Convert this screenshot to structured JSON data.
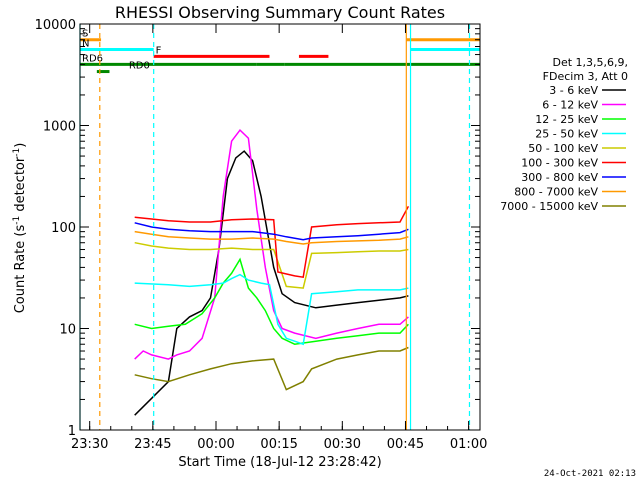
{
  "chart_data": {
    "type": "line",
    "title": "RHESSI Observing Summary Count Rates",
    "xlabel": "Start Time (18-Jul-12 23:28:42)",
    "ylabel": "Count Rate (s⁻¹ detector⁻¹)",
    "ylabel_main": "Count Rate (s",
    "ylabel_mid": " detector",
    "ylabel_end": ")",
    "ylabel_sup": "-1",
    "yscale": "log",
    "ylim": [
      1,
      10000
    ],
    "xlim_minutes": [
      -1,
      94
    ],
    "ytick_labels": [
      "1",
      "10",
      "100",
      "1000",
      "10000"
    ],
    "xtick_labels": [
      "23:30",
      "23:45",
      "00:00",
      "00:15",
      "00:30",
      "00:45",
      "01:00"
    ],
    "xtick_minutes": [
      1.3,
      16.3,
      31.3,
      46.3,
      61.3,
      76.3,
      91.3
    ],
    "legend_header": [
      "Det 1,3,5,6,9,",
      "FDecim 3, Att 0"
    ],
    "series": [
      {
        "name": "3 - 6 keV",
        "color": "#000000",
        "points": [
          [
            12,
            1.4
          ],
          [
            20,
            3
          ],
          [
            22,
            10
          ],
          [
            25,
            13
          ],
          [
            28,
            15
          ],
          [
            30,
            20
          ],
          [
            32,
            60
          ],
          [
            34,
            300
          ],
          [
            36,
            480
          ],
          [
            38,
            560
          ],
          [
            40,
            450
          ],
          [
            42,
            200
          ],
          [
            45,
            40
          ],
          [
            47,
            22
          ],
          [
            50,
            18
          ],
          [
            55,
            16
          ],
          [
            60,
            17
          ],
          [
            65,
            18
          ],
          [
            70,
            19
          ],
          [
            75,
            20
          ],
          [
            77,
            21
          ]
        ]
      },
      {
        "name": "6 - 12 keV",
        "color": "#ff00ff",
        "points": [
          [
            12,
            5
          ],
          [
            14,
            6
          ],
          [
            16,
            5.5
          ],
          [
            20,
            5
          ],
          [
            22,
            5.5
          ],
          [
            25,
            6
          ],
          [
            28,
            8
          ],
          [
            31,
            20
          ],
          [
            33,
            200
          ],
          [
            35,
            700
          ],
          [
            37,
            900
          ],
          [
            39,
            750
          ],
          [
            41,
            150
          ],
          [
            43,
            40
          ],
          [
            45,
            15
          ],
          [
            47,
            10
          ],
          [
            50,
            9
          ],
          [
            55,
            8
          ],
          [
            60,
            9
          ],
          [
            65,
            10
          ],
          [
            70,
            11
          ],
          [
            75,
            11
          ],
          [
            77,
            13
          ]
        ]
      },
      {
        "name": "12 - 25 keV",
        "color": "#00ff00",
        "points": [
          [
            12,
            11
          ],
          [
            16,
            10
          ],
          [
            20,
            10.5
          ],
          [
            24,
            11
          ],
          [
            28,
            14
          ],
          [
            31,
            20
          ],
          [
            33,
            28
          ],
          [
            35,
            35
          ],
          [
            37,
            48
          ],
          [
            39,
            25
          ],
          [
            41,
            20
          ],
          [
            43,
            15
          ],
          [
            45,
            10
          ],
          [
            47,
            8
          ],
          [
            50,
            7
          ],
          [
            55,
            7.5
          ],
          [
            60,
            8
          ],
          [
            65,
            8.5
          ],
          [
            70,
            9
          ],
          [
            75,
            9
          ],
          [
            77,
            11
          ]
        ]
      },
      {
        "name": "25 - 50 keV",
        "color": "#00ffff",
        "points": [
          [
            12,
            28
          ],
          [
            20,
            27
          ],
          [
            25,
            26
          ],
          [
            30,
            27
          ],
          [
            33,
            28
          ],
          [
            35,
            31
          ],
          [
            37,
            34
          ],
          [
            39,
            30
          ],
          [
            42,
            28
          ],
          [
            44,
            27
          ],
          [
            46,
            11
          ],
          [
            48,
            8
          ],
          [
            50,
            7.5
          ],
          [
            52,
            7
          ],
          [
            54,
            22
          ],
          [
            60,
            23
          ],
          [
            65,
            24
          ],
          [
            70,
            24
          ],
          [
            75,
            24
          ],
          [
            77,
            25
          ]
        ]
      },
      {
        "name": "50 - 100 keV",
        "color": "#cccc00",
        "points": [
          [
            12,
            70
          ],
          [
            16,
            65
          ],
          [
            20,
            62
          ],
          [
            25,
            60
          ],
          [
            30,
            60
          ],
          [
            35,
            62
          ],
          [
            40,
            60
          ],
          [
            45,
            60
          ],
          [
            48,
            26
          ],
          [
            52,
            25
          ],
          [
            54,
            55
          ],
          [
            60,
            56
          ],
          [
            65,
            57
          ],
          [
            70,
            58
          ],
          [
            75,
            58
          ],
          [
            77,
            60
          ]
        ]
      },
      {
        "name": "100 - 300 keV",
        "color": "#ff0000",
        "points": [
          [
            12,
            125
          ],
          [
            16,
            120
          ],
          [
            20,
            115
          ],
          [
            25,
            112
          ],
          [
            30,
            112
          ],
          [
            35,
            118
          ],
          [
            40,
            120
          ],
          [
            45,
            118
          ],
          [
            46,
            36
          ],
          [
            50,
            33
          ],
          [
            52,
            32
          ],
          [
            54,
            100
          ],
          [
            60,
            105
          ],
          [
            65,
            108
          ],
          [
            70,
            110
          ],
          [
            75,
            112
          ],
          [
            77,
            160
          ]
        ]
      },
      {
        "name": "300 - 800 keV",
        "color": "#0000ff",
        "points": [
          [
            12,
            110
          ],
          [
            16,
            100
          ],
          [
            20,
            95
          ],
          [
            25,
            92
          ],
          [
            30,
            90
          ],
          [
            35,
            90
          ],
          [
            40,
            90
          ],
          [
            45,
            85
          ],
          [
            48,
            80
          ],
          [
            52,
            75
          ],
          [
            54,
            78
          ],
          [
            60,
            80
          ],
          [
            65,
            82
          ],
          [
            70,
            85
          ],
          [
            75,
            88
          ],
          [
            77,
            95
          ]
        ]
      },
      {
        "name": "800 - 7000 keV",
        "color": "#ff9900",
        "points": [
          [
            12,
            90
          ],
          [
            16,
            85
          ],
          [
            20,
            80
          ],
          [
            25,
            78
          ],
          [
            30,
            76
          ],
          [
            35,
            76
          ],
          [
            40,
            78
          ],
          [
            45,
            76
          ],
          [
            48,
            72
          ],
          [
            52,
            68
          ],
          [
            54,
            70
          ],
          [
            60,
            72
          ],
          [
            65,
            73
          ],
          [
            70,
            74
          ],
          [
            75,
            76
          ],
          [
            77,
            80
          ]
        ]
      },
      {
        "name": "7000 - 15000 keV",
        "color": "#808000",
        "points": [
          [
            12,
            3.5
          ],
          [
            16,
            3.2
          ],
          [
            20,
            3
          ],
          [
            25,
            3.5
          ],
          [
            30,
            4
          ],
          [
            35,
            4.5
          ],
          [
            40,
            4.8
          ],
          [
            45,
            5
          ],
          [
            48,
            2.5
          ],
          [
            52,
            3
          ],
          [
            54,
            4
          ],
          [
            60,
            5
          ],
          [
            65,
            5.5
          ],
          [
            70,
            6
          ],
          [
            75,
            6
          ],
          [
            77,
            6.5
          ]
        ]
      }
    ],
    "flag_lines": [
      {
        "label": "S",
        "color": "#ff9900",
        "y": 7000,
        "segments": [
          [
            -1,
            4
          ],
          [
            76.5,
            94
          ]
        ]
      },
      {
        "label": "N",
        "color": "#00ffff",
        "y": 5600,
        "segments": [
          [
            -1,
            16.5
          ],
          [
            77.5,
            94
          ]
        ]
      },
      {
        "label": "F",
        "color": "#ff0000",
        "y": 4800,
        "segments": [
          [
            16.5,
            44
          ],
          [
            51,
            58
          ]
        ]
      },
      {
        "label": "RD6",
        "color": "#008800",
        "y": 4000,
        "segments": [
          [
            -1,
            41
          ],
          [
            41,
            47.5
          ],
          [
            47.5,
            94
          ]
        ]
      },
      {
        "label": "RD0",
        "color": "#008800",
        "y": 3400,
        "segments": [
          [
            3,
            6
          ]
        ]
      }
    ],
    "vlines": [
      {
        "minute": -1,
        "color": "#00ffff",
        "style": "solid"
      },
      {
        "minute": 3.7,
        "color": "#ff9900",
        "style": "dashed"
      },
      {
        "minute": 16.5,
        "color": "#00ffff",
        "style": "dashed"
      },
      {
        "minute": 76.5,
        "color": "#ff9900",
        "style": "solid"
      },
      {
        "minute": 77.5,
        "color": "#00ffff",
        "style": "solid"
      },
      {
        "minute": 91.5,
        "color": "#00ffff",
        "style": "dashed"
      }
    ],
    "grid": false,
    "legend_position": "right"
  },
  "footer_date": "24-Oct-2021 02:13"
}
